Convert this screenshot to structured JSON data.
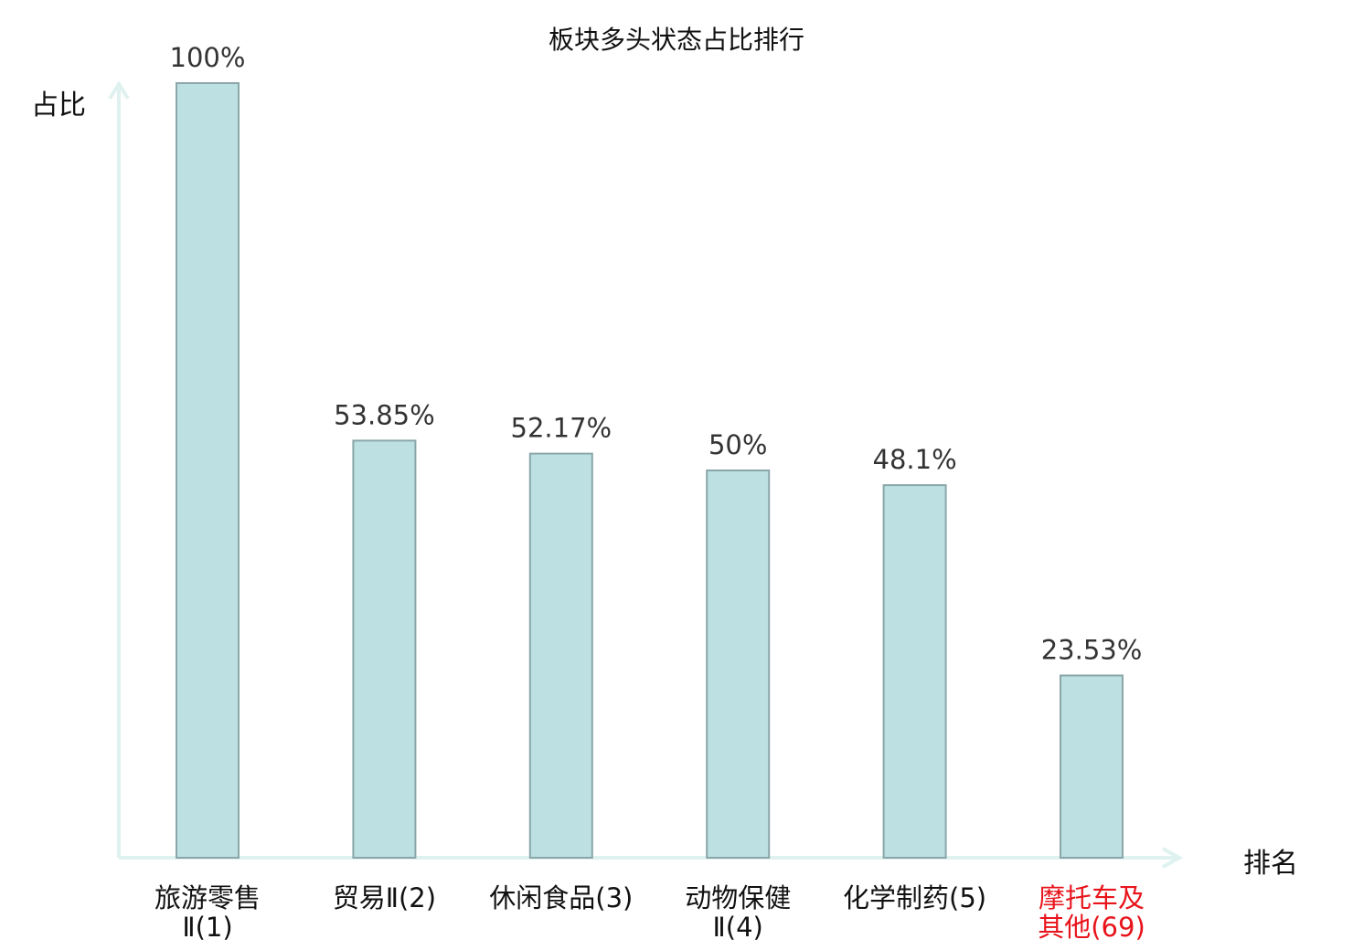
{
  "chart_data": {
    "type": "bar",
    "title": "板块多头状态占比排行",
    "xlabel": "排名",
    "ylabel": "占比",
    "ylim": [
      0,
      100
    ],
    "grid": false,
    "categories": [
      {
        "lines": [
          "旅游零售",
          "Ⅱ(1)"
        ],
        "highlight": false
      },
      {
        "lines": [
          "贸易Ⅱ(2)"
        ],
        "highlight": false
      },
      {
        "lines": [
          "休闲食品(3)"
        ],
        "highlight": false
      },
      {
        "lines": [
          "动物保健",
          "Ⅱ(4)"
        ],
        "highlight": false
      },
      {
        "lines": [
          "化学制药(5)"
        ],
        "highlight": false
      },
      {
        "lines": [
          "摩托车及",
          "其他(69)"
        ],
        "highlight": true
      }
    ],
    "values": [
      100,
      53.85,
      52.17,
      50,
      48.1,
      23.53
    ],
    "value_labels": [
      "100%",
      "53.85%",
      "52.17%",
      "50%",
      "48.1%",
      "23.53%"
    ],
    "colors": {
      "bar_fill": "#bde0e3",
      "bar_stroke": "#8aa6a9",
      "axis": "#dff2ef",
      "label_text": "#333333",
      "category_text": "#111111",
      "highlight_text": "#e8141b"
    }
  }
}
